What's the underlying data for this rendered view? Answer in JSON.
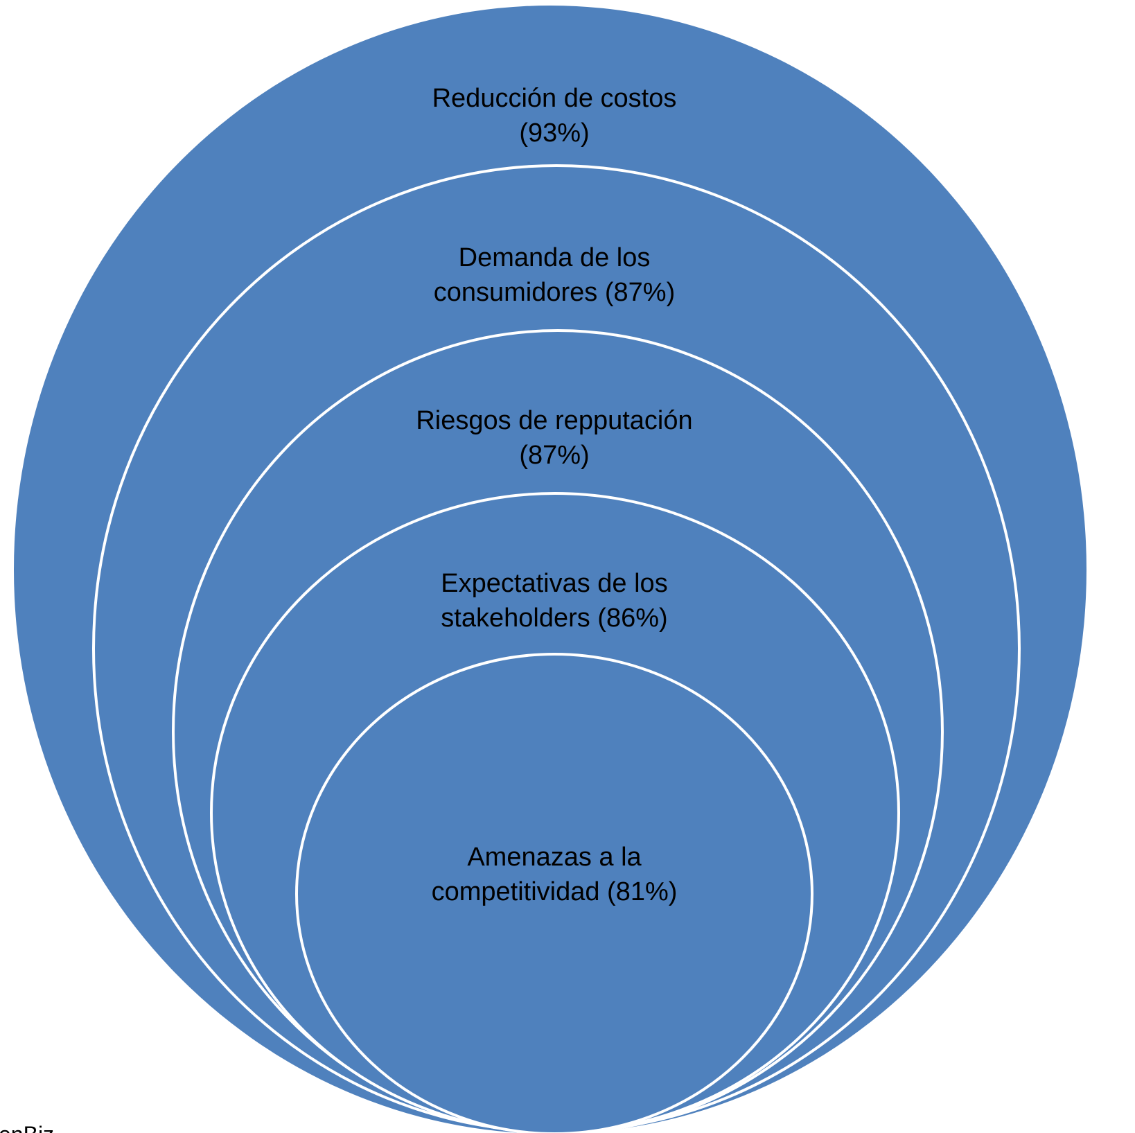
{
  "nodes": [
    {
      "lines": [
        "Reducción de costos",
        "(93%)"
      ]
    },
    {
      "lines": [
        "Demanda de los",
        "consumidores (87%)"
      ]
    },
    {
      "lines": [
        "Riesgos de repputación",
        "(87%)"
      ]
    },
    {
      "lines": [
        "Expectativas de los",
        "stakeholders (86%)"
      ]
    },
    {
      "lines": [
        "Amenazas a la",
        "competitividad (81%)"
      ]
    }
  ],
  "source": "enBiz"
}
